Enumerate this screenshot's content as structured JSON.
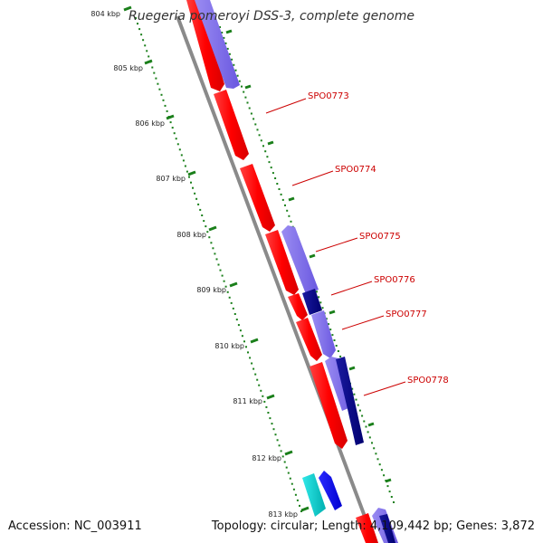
{
  "title": "Ruegeria pomeroyi DSS-3, complete genome",
  "footer": {
    "accession": "Accession: NC_003911",
    "summary": "Topology: circular; Length: 4,109,442 bp; Genes: 3,872"
  },
  "colors": {
    "backbone": "#808080",
    "forward_gene": "#ff0000",
    "reverse_gene": "#7b68ee",
    "dark_gene": "#00008b",
    "cyan_gene": "#00cccc",
    "blue_gene": "#0000ff",
    "tick": "#006400",
    "label": "#cc0000"
  },
  "ticks": [
    "804 kbp",
    "805 kbp",
    "806 kbp",
    "807 kbp",
    "808 kbp",
    "809 kbp",
    "810 kbp",
    "811 kbp",
    "812 kbp",
    "813 kbp"
  ],
  "gene_labels": [
    "SPO0773",
    "SPO0774",
    "SPO0775",
    "SPO0776",
    "SPO0777",
    "SPO0778"
  ]
}
